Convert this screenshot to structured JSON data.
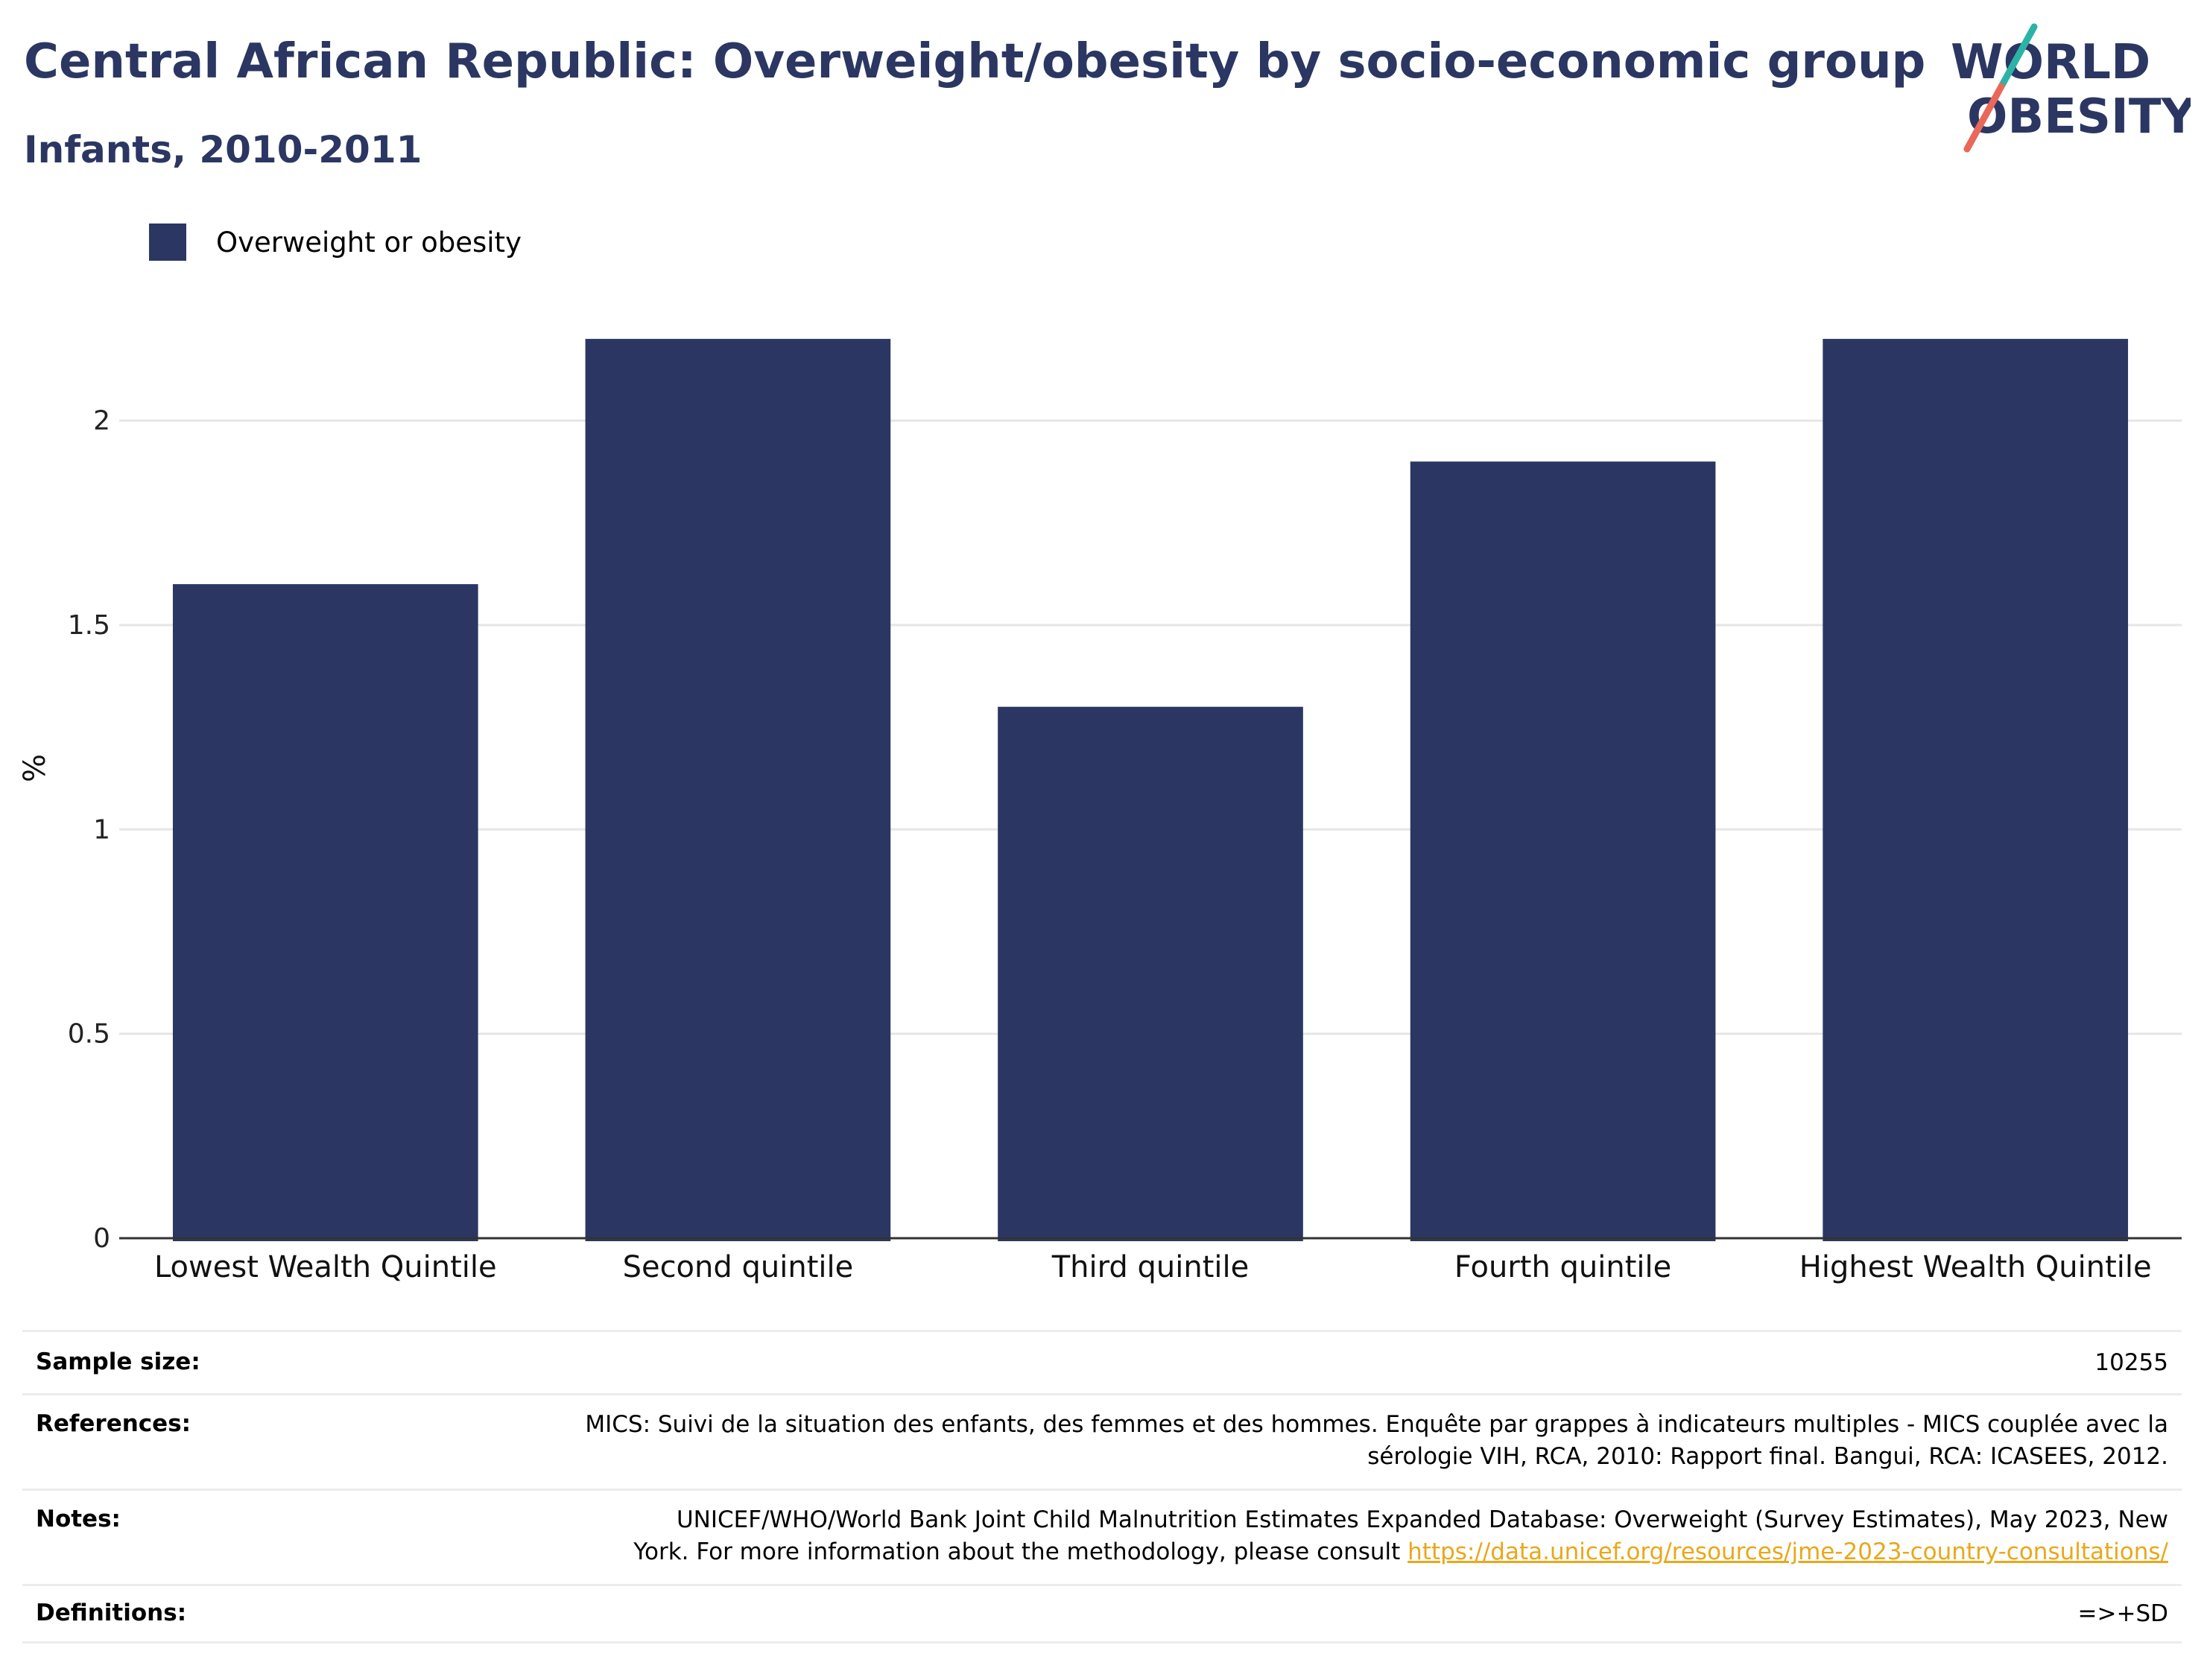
{
  "header": {
    "title": "Central African Republic: Overweight/obesity by socio-economic group",
    "subtitle": "Infants, 2010-2011"
  },
  "logo": {
    "line1": "WORLD",
    "line2": "OBESITY"
  },
  "colors": {
    "bar": "#2b3762",
    "title": "#2b3762",
    "logo_teal": "#2bb3a6",
    "logo_coral": "#e8685a",
    "link": "#e8a81a"
  },
  "chart_data": {
    "type": "bar",
    "categories": [
      "Lowest Wealth Quintile",
      "Second quintile",
      "Third quintile",
      "Fourth quintile",
      "Highest Wealth Quintile"
    ],
    "series": [
      {
        "name": "Overweight or obesity",
        "values": [
          1.6,
          2.2,
          1.3,
          1.9,
          2.2
        ]
      }
    ],
    "ylabel": "%",
    "ylim": [
      0,
      2.3
    ],
    "yticks": [
      0,
      0.5,
      1,
      1.5,
      2
    ],
    "ytick_labels": [
      "0",
      "0.5",
      "1",
      "1.5",
      "2"
    ],
    "grid": true,
    "legend": "top-left"
  },
  "meta": {
    "sample_size": {
      "label": "Sample size:",
      "value": "10255"
    },
    "references": {
      "label": "References:",
      "line1": "MICS: Suivi de la situation des enfants, des femmes et des hommes. Enquête par grappes à indicateurs multiples - MICS couplée avec la",
      "line2": "sérologie VIH, RCA, 2010: Rapport final. Bangui, RCA: ICASEES, 2012."
    },
    "notes": {
      "label": "Notes:",
      "line1": "UNICEF/WHO/World Bank Joint Child Malnutrition Estimates Expanded Database: Overweight (Survey Estimates), May 2023, New",
      "line2": "York. For more information about the methodology, please consult ",
      "link": "https://data.unicef.org/resources/jme-2023-country-consultations/"
    },
    "definitions": {
      "label": "Definitions:",
      "value": "=>+SD"
    }
  }
}
